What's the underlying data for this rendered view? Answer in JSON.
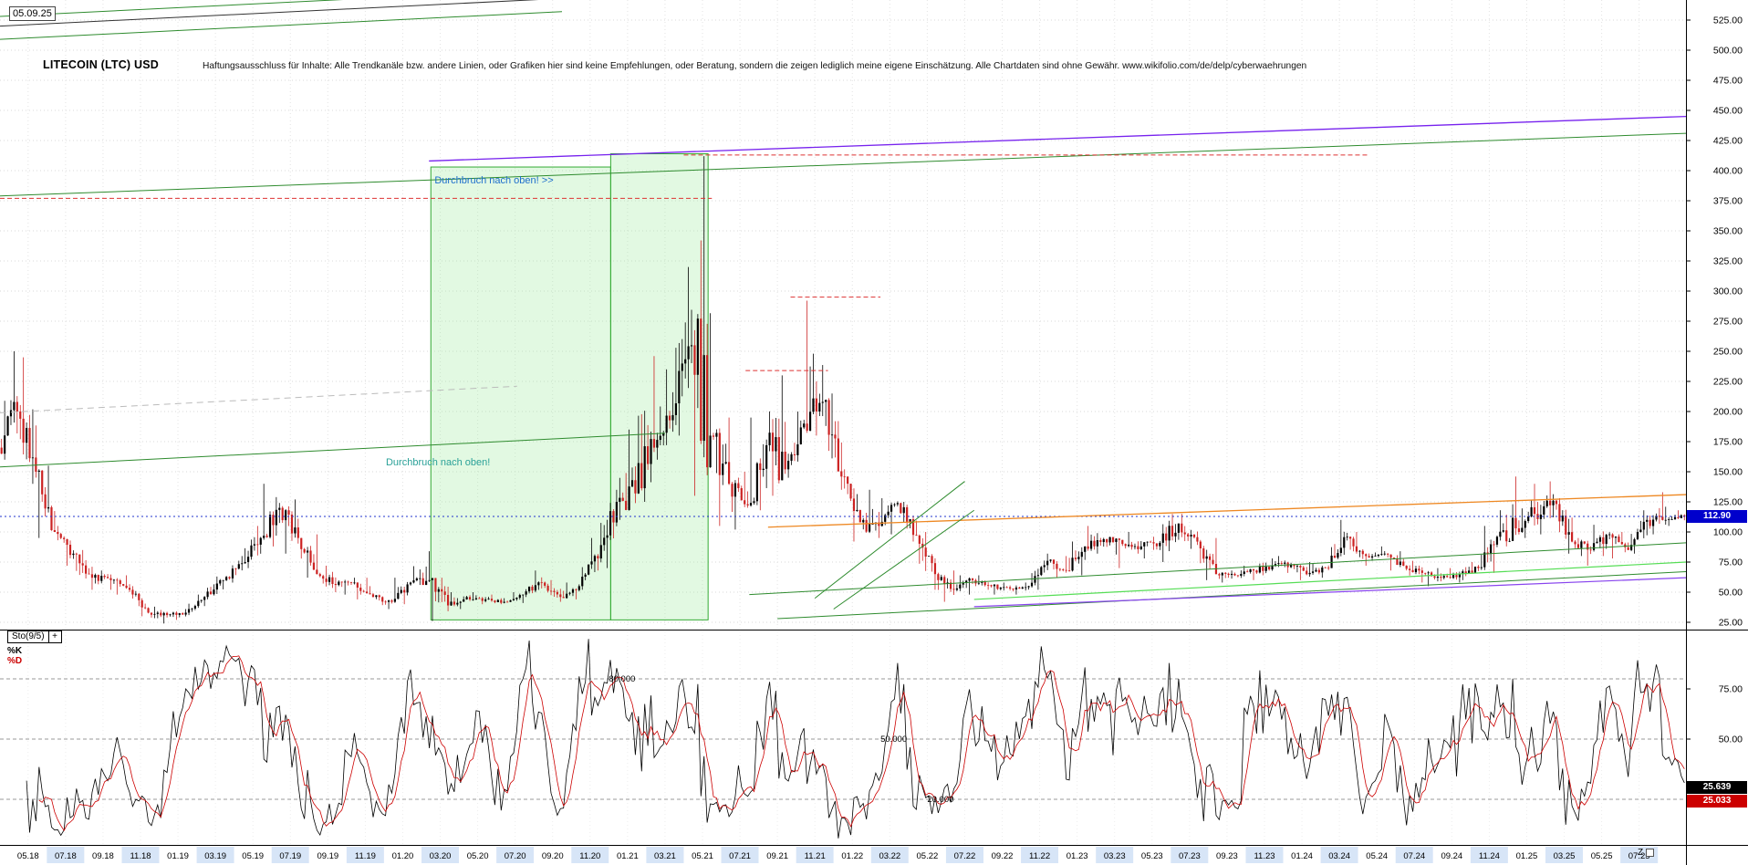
{
  "header": {
    "date": "05.09.25",
    "title": "LITECOIN (LTC) USD",
    "disclaimer": "Haftungsausschluss für Inhalte: Alle Trendkanäle bzw. andere Linien, oder Grafiken hier sind keine Empfehlungen, oder Beratung, sondern die zeigen lediglich meine eigene Einschätzung. Alle Chartdaten sind ohne Gewähr.  www.wikifolio.com/de/delp/cyberwaehrungen"
  },
  "price_scale": {
    "min": 25,
    "max": 525,
    "step": 25,
    "tick_labels": [
      "525.00",
      "500.00",
      "475.00",
      "450.00",
      "425.00",
      "400.00",
      "375.00",
      "350.00",
      "325.00",
      "300.00",
      "275.00",
      "250.00",
      "225.00",
      "200.00",
      "175.00",
      "150.00",
      "125.00",
      "100.00",
      "75.00",
      "50.00",
      "25.00"
    ],
    "last_badge": "112.90",
    "badge_color": "#0000cc"
  },
  "annotations": [
    {
      "text": "Durchbruch nach oben! >>",
      "color": "#1d6ecc",
      "m": 23.2,
      "price": 386
    },
    {
      "text": "Durchbruch nach oben!",
      "color": "#2aa198",
      "m": 20.6,
      "price": 152
    }
  ],
  "x_axis": {
    "labels": [
      "05.18",
      "07.18",
      "09.18",
      "11.18",
      "01.19",
      "03.19",
      "05.19",
      "07.19",
      "09.19",
      "11.19",
      "01.20",
      "03.20",
      "05.20",
      "07.20",
      "09.20",
      "11.20",
      "01.21",
      "03.21",
      "05.21",
      "07.21",
      "09.21",
      "11.21",
      "01.22",
      "03.22",
      "05.22",
      "07.22",
      "09.22",
      "11.22",
      "01.23",
      "03.23",
      "05.23",
      "07.23",
      "09.23",
      "11.23",
      "01.24",
      "03.24",
      "05.24",
      "07.24",
      "09.24",
      "11.24",
      "01.25",
      "03.25",
      "05.25",
      "07.25"
    ],
    "z_label": "Z",
    "highlight_color": "#d7e5f7"
  },
  "stochastic": {
    "label": "Sto(9/5)",
    "add_label": "+",
    "k_label": "%K",
    "d_label": "%D",
    "k_color": "#000000",
    "d_color": "#cc0000",
    "k_value": "25.639",
    "d_value": "25.033",
    "params": {
      "k_period": 9,
      "d_period": 5
    },
    "levels": [
      {
        "value": 80,
        "label": "80.000",
        "m": 32.5
      },
      {
        "value": 50,
        "label": "50.000",
        "m": 47
      },
      {
        "value": 20,
        "label": "20.000",
        "m": 49.5
      }
    ],
    "scale_labels": [
      {
        "value": 75,
        "label": "75.00"
      },
      {
        "value": 50,
        "label": "50.00"
      },
      {
        "value": 25,
        "label": "25.00"
      }
    ]
  },
  "zones": [
    {
      "m1": 23,
      "m2": 32.6,
      "p1": 27,
      "p2": 403,
      "fill": "rgba(160,235,160,0.30)",
      "stroke": "#33aa33"
    },
    {
      "m1": 32.6,
      "m2": 37.8,
      "p1": 27,
      "p2": 414,
      "fill": "rgba(160,235,160,0.30)",
      "stroke": "#33aa33"
    }
  ],
  "trend_lines": [
    {
      "m1": 0,
      "p1": 379,
      "m2": 90,
      "p2": 431,
      "color": "#2e8b2e",
      "w": 1
    },
    {
      "m1": 0,
      "p1": 377,
      "m2": 38,
      "p2": 377,
      "color": "#dd3333",
      "w": 1,
      "dash": "5,3"
    },
    {
      "m1": 36.5,
      "p1": 413,
      "m2": 73,
      "p2": 413,
      "color": "#dd3333",
      "w": 1,
      "dash": "5,3"
    },
    {
      "m1": 22.9,
      "p1": 408,
      "m2": 90,
      "p2": 445,
      "color": "#7722ee",
      "w": 1.3
    },
    {
      "m1": 0,
      "p1": 199,
      "m2": 27.6,
      "p2": 221,
      "color": "#bbbbbb",
      "w": 1,
      "dash": "7,5"
    },
    {
      "m1": 0,
      "p1": 154,
      "m2": 35.5,
      "p2": 182,
      "color": "#2e8b2e",
      "w": 1
    },
    {
      "m1": 0,
      "p1": 112.9,
      "m2": 90,
      "p2": 112.9,
      "color": "#2233cc",
      "w": 1,
      "dash": "2,3"
    },
    {
      "m1": 42.2,
      "p1": 295,
      "m2": 47,
      "p2": 295,
      "color": "#dd3333",
      "w": 1,
      "dash": "5,3"
    },
    {
      "m1": 39.8,
      "p1": 234,
      "m2": 44.2,
      "p2": 234,
      "color": "#dd3333",
      "w": 1,
      "dash": "5,3"
    },
    {
      "m1": 41,
      "p1": 104,
      "m2": 90,
      "p2": 131,
      "color": "#ee8822",
      "w": 1.3
    },
    {
      "m1": 40,
      "p1": 48,
      "m2": 90,
      "p2": 91,
      "color": "#2e8b2e",
      "w": 1
    },
    {
      "m1": 41.5,
      "p1": 28,
      "m2": 90,
      "p2": 67,
      "color": "#2e8b2e",
      "w": 1
    },
    {
      "m1": 52,
      "p1": 44,
      "m2": 90,
      "p2": 75,
      "color": "#55dd55",
      "w": 1.2
    },
    {
      "m1": 52,
      "p1": 38,
      "m2": 90,
      "p2": 62,
      "color": "#8844ee",
      "w": 1.2
    },
    {
      "m1": 43.5,
      "p1": 45,
      "m2": 51.5,
      "p2": 142,
      "color": "#2e8b2e",
      "w": 1
    },
    {
      "m1": 44.5,
      "p1": 36,
      "m2": 52,
      "p2": 118,
      "color": "#2e8b2e",
      "w": 1
    },
    {
      "m1": 0,
      "p1": 520,
      "m2": 30,
      "p2": 543,
      "color": "#333333",
      "w": 1
    },
    {
      "m1": 0,
      "p1": 528,
      "m2": 30,
      "p2": 551,
      "color": "#2e8b2e",
      "w": 1
    },
    {
      "m1": 0,
      "p1": 509,
      "m2": 30,
      "p2": 532,
      "color": "#2e8b2e",
      "w": 1
    }
  ],
  "chart_data": {
    "type": "candlestick",
    "symbol": "LITECOIN (LTC) USD",
    "timeframe_start": "04.18",
    "timeframe_end": "09.25",
    "ylim": [
      25,
      525
    ],
    "grid": true,
    "last_price": 112.9,
    "first_open": 170,
    "columns": [
      "month",
      "high",
      "low",
      "close"
    ],
    "colors": {
      "up": "#000000",
      "down": "#cc2222"
    },
    "months": [
      [
        "04.18",
        250,
        160,
        200
      ],
      [
        "05.18",
        245,
        140,
        150
      ],
      [
        "06.18",
        155,
        95,
        100
      ],
      [
        "07.18",
        105,
        72,
        82
      ],
      [
        "08.18",
        85,
        52,
        62
      ],
      [
        "09.18",
        68,
        52,
        60
      ],
      [
        "10.18",
        64,
        48,
        52
      ],
      [
        "11.18",
        55,
        30,
        33
      ],
      [
        "12.18",
        38,
        24,
        31
      ],
      [
        "01.19",
        36,
        27,
        33
      ],
      [
        "02.19",
        48,
        31,
        46
      ],
      [
        "03.19",
        63,
        44,
        60
      ],
      [
        "04.19",
        80,
        58,
        74
      ],
      [
        "05.19",
        105,
        70,
        95
      ],
      [
        "06.19",
        140,
        88,
        120
      ],
      [
        "07.19",
        127,
        82,
        95
      ],
      [
        "08.19",
        98,
        62,
        65
      ],
      [
        "09.19",
        72,
        50,
        56
      ],
      [
        "10.19",
        62,
        48,
        58
      ],
      [
        "11.19",
        62,
        44,
        46
      ],
      [
        "12.19",
        48,
        36,
        42
      ],
      [
        "01.20",
        62,
        40,
        58
      ],
      [
        "02.20",
        84,
        56,
        60
      ],
      [
        "03.20",
        62,
        26,
        39
      ],
      [
        "04.20",
        50,
        36,
        46
      ],
      [
        "05.20",
        50,
        40,
        44
      ],
      [
        "06.20",
        48,
        40,
        42
      ],
      [
        "07.20",
        50,
        41,
        48
      ],
      [
        "08.20",
        68,
        46,
        58
      ],
      [
        "09.20",
        60,
        42,
        46
      ],
      [
        "10.20",
        58,
        44,
        55
      ],
      [
        "11.20",
        95,
        52,
        78
      ],
      [
        "12.20",
        135,
        70,
        125
      ],
      [
        "01.21",
        185,
        110,
        132
      ],
      [
        "02.21",
        246,
        125,
        170
      ],
      [
        "03.21",
        235,
        160,
        197
      ],
      [
        "04.21",
        320,
        180,
        255
      ],
      [
        "05.21",
        412,
        130,
        180
      ],
      [
        "06.21",
        195,
        105,
        140
      ],
      [
        "07.21",
        150,
        102,
        122
      ],
      [
        "08.21",
        195,
        118,
        172
      ],
      [
        "09.21",
        230,
        130,
        152
      ],
      [
        "10.21",
        200,
        145,
        190
      ],
      [
        "11.21",
        292,
        180,
        208
      ],
      [
        "12.21",
        215,
        135,
        146
      ],
      [
        "01.22",
        152,
        92,
        108
      ],
      [
        "02.22",
        135,
        95,
        105
      ],
      [
        "03.22",
        128,
        98,
        124
      ],
      [
        "04.22",
        125,
        92,
        97
      ],
      [
        "05.22",
        100,
        52,
        65
      ],
      [
        "06.22",
        68,
        42,
        52
      ],
      [
        "07.22",
        64,
        48,
        60
      ],
      [
        "08.22",
        64,
        52,
        55
      ],
      [
        "09.22",
        58,
        48,
        53
      ],
      [
        "10.22",
        58,
        48,
        55
      ],
      [
        "11.22",
        82,
        52,
        76
      ],
      [
        "12.22",
        80,
        62,
        68
      ],
      [
        "01.23",
        92,
        64,
        88
      ],
      [
        "02.23",
        105,
        82,
        94
      ],
      [
        "03.23",
        96,
        70,
        90
      ],
      [
        "04.23",
        100,
        82,
        88
      ],
      [
        "05.23",
        96,
        78,
        91
      ],
      [
        "06.23",
        115,
        75,
        107
      ],
      [
        "07.23",
        115,
        86,
        92
      ],
      [
        "08.23",
        95,
        60,
        65
      ],
      [
        "09.23",
        68,
        58,
        64
      ],
      [
        "10.23",
        72,
        60,
        68
      ],
      [
        "11.23",
        78,
        64,
        72
      ],
      [
        "12.23",
        80,
        66,
        73
      ],
      [
        "01.24",
        75,
        60,
        66
      ],
      [
        "02.24",
        74,
        62,
        70
      ],
      [
        "03.24",
        110,
        70,
        96
      ],
      [
        "04.24",
        100,
        72,
        80
      ],
      [
        "05.24",
        88,
        76,
        82
      ],
      [
        "06.24",
        84,
        68,
        72
      ],
      [
        "07.24",
        76,
        58,
        66
      ],
      [
        "08.24",
        70,
        55,
        62
      ],
      [
        "09.24",
        70,
        58,
        65
      ],
      [
        "10.24",
        75,
        60,
        70
      ],
      [
        "11.24",
        105,
        66,
        96
      ],
      [
        "12.24",
        146,
        88,
        103
      ],
      [
        "01.25",
        140,
        95,
        115
      ],
      [
        "02.25",
        142,
        98,
        126
      ],
      [
        "03.25",
        128,
        82,
        92
      ],
      [
        "04.25",
        95,
        72,
        85
      ],
      [
        "05.25",
        106,
        80,
        98
      ],
      [
        "06.25",
        100,
        78,
        85
      ],
      [
        "07.25",
        118,
        82,
        110
      ],
      [
        "08.25",
        133,
        98,
        110
      ],
      [
        "09.25",
        118,
        105,
        112.9
      ]
    ]
  }
}
